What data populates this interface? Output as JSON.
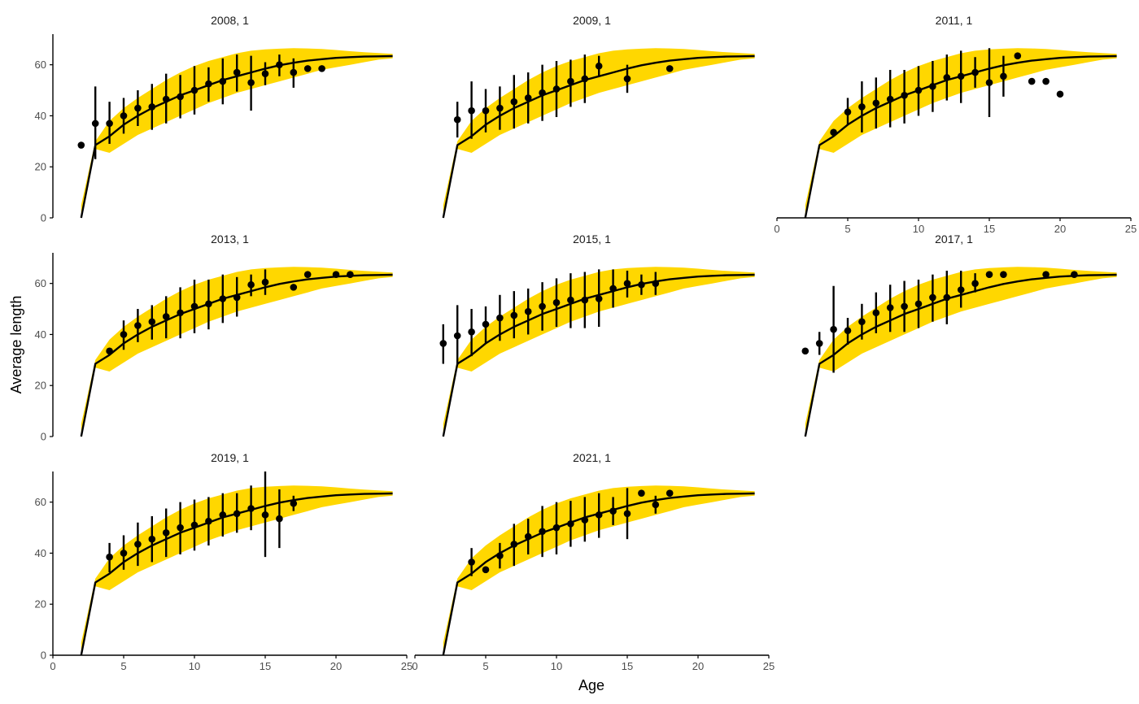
{
  "colors": {
    "band": "#FFD700",
    "line": "#000000",
    "point": "#000000",
    "axis": "#000000",
    "text": "#4d4d4d"
  },
  "chart_data": {
    "type": "scatter",
    "xlabel": "Age",
    "ylabel": "Average length",
    "xlim": [
      0,
      25
    ],
    "ylim": [
      0,
      72
    ],
    "x_ticks": [
      0,
      5,
      10,
      15,
      20,
      25
    ],
    "y_ticks": [
      0,
      20,
      40,
      60
    ],
    "grid": false,
    "fitted_curve": {
      "x": [
        2,
        3,
        4,
        5,
        6,
        7,
        8,
        9,
        10,
        11,
        12,
        13,
        14,
        15,
        16,
        17,
        18,
        19,
        20,
        21,
        22,
        23,
        24
      ],
      "y": [
        0,
        28.5,
        32,
        36.5,
        40,
        43,
        45.5,
        48,
        50,
        52,
        54,
        55.5,
        57,
        58.5,
        59.8,
        60.8,
        61.6,
        62.2,
        62.7,
        63,
        63.2,
        63.3,
        63.4
      ],
      "band_low": [
        0,
        27,
        25.5,
        29,
        32.5,
        35,
        37.5,
        40,
        42.5,
        45,
        47,
        49,
        50.5,
        52,
        53.5,
        55,
        56.5,
        58,
        59,
        60,
        61,
        62,
        62.5
      ],
      "band_high": [
        5,
        30,
        38,
        43,
        47,
        50.5,
        54,
        57,
        59.5,
        61.5,
        63,
        64.5,
        65.5,
        66,
        66.3,
        66.5,
        66.4,
        66.2,
        65.8,
        65.3,
        64.9,
        64.6,
        64.3
      ]
    },
    "panels": [
      {
        "title": "2008, 1",
        "obs": [
          {
            "x": 2,
            "y": 28.5
          },
          {
            "x": 3,
            "y": 37,
            "lo": 23,
            "hi": 51.5
          },
          {
            "x": 4,
            "y": 37,
            "lo": 29,
            "hi": 45.5
          },
          {
            "x": 5,
            "y": 40,
            "lo": 33,
            "hi": 47
          },
          {
            "x": 6,
            "y": 43,
            "lo": 36,
            "hi": 50
          },
          {
            "x": 7,
            "y": 43.5,
            "lo": 34.5,
            "hi": 52.5
          },
          {
            "x": 8,
            "y": 46.5,
            "lo": 37,
            "hi": 56.5
          },
          {
            "x": 9,
            "y": 47.5,
            "lo": 39,
            "hi": 56
          },
          {
            "x": 10,
            "y": 50,
            "lo": 40.5,
            "hi": 59.5
          },
          {
            "x": 11,
            "y": 52.5,
            "lo": 45.5,
            "hi": 59
          },
          {
            "x": 12,
            "y": 53.5,
            "lo": 44.5,
            "hi": 62.5
          },
          {
            "x": 13,
            "y": 57,
            "lo": 49.5,
            "hi": 64
          },
          {
            "x": 14,
            "y": 53,
            "lo": 42,
            "hi": 63.5
          },
          {
            "x": 15,
            "y": 56.5,
            "lo": 52,
            "hi": 61
          },
          {
            "x": 16,
            "y": 60,
            "lo": 55.5,
            "hi": 64
          },
          {
            "x": 17,
            "y": 57,
            "lo": 51,
            "hi": 62.5
          },
          {
            "x": 18,
            "y": 58.5
          },
          {
            "x": 19,
            "y": 58.5
          }
        ]
      },
      {
        "title": "2009, 1",
        "obs": [
          {
            "x": 3,
            "y": 38.5,
            "lo": 31.5,
            "hi": 45.5
          },
          {
            "x": 4,
            "y": 42,
            "lo": 31,
            "hi": 53.5
          },
          {
            "x": 5,
            "y": 42,
            "lo": 33.5,
            "hi": 50.5
          },
          {
            "x": 6,
            "y": 43,
            "lo": 34.5,
            "hi": 51.5
          },
          {
            "x": 7,
            "y": 45.5,
            "lo": 35,
            "hi": 56
          },
          {
            "x": 8,
            "y": 47,
            "lo": 37,
            "hi": 57
          },
          {
            "x": 9,
            "y": 49,
            "lo": 38,
            "hi": 60
          },
          {
            "x": 10,
            "y": 50.5,
            "lo": 39.5,
            "hi": 61.5
          },
          {
            "x": 11,
            "y": 53.5,
            "lo": 43.5,
            "hi": 62
          },
          {
            "x": 12,
            "y": 54.5,
            "lo": 45,
            "hi": 64
          },
          {
            "x": 13,
            "y": 59.5,
            "lo": 55.5,
            "hi": 63.5
          },
          {
            "x": 15,
            "y": 54.5,
            "lo": 49,
            "hi": 60
          },
          {
            "x": 18,
            "y": 58.5
          }
        ]
      },
      {
        "title": "2011, 1",
        "obs": [
          {
            "x": 4,
            "y": 33.5
          },
          {
            "x": 5,
            "y": 41.5,
            "lo": 36.5,
            "hi": 47
          },
          {
            "x": 6,
            "y": 43.5,
            "lo": 33.5,
            "hi": 53.5
          },
          {
            "x": 7,
            "y": 45,
            "lo": 35,
            "hi": 55
          },
          {
            "x": 8,
            "y": 46.5,
            "lo": 35.5,
            "hi": 58
          },
          {
            "x": 9,
            "y": 48,
            "lo": 37,
            "hi": 58
          },
          {
            "x": 10,
            "y": 50,
            "lo": 40,
            "hi": 59.5
          },
          {
            "x": 11,
            "y": 51.5,
            "lo": 41.5,
            "hi": 61.5
          },
          {
            "x": 12,
            "y": 55,
            "lo": 46,
            "hi": 64
          },
          {
            "x": 13,
            "y": 55.5,
            "lo": 45,
            "hi": 65.5
          },
          {
            "x": 14,
            "y": 57,
            "lo": 51,
            "hi": 63
          },
          {
            "x": 15,
            "y": 53,
            "lo": 39.5,
            "hi": 66.5
          },
          {
            "x": 16,
            "y": 55.5,
            "lo": 47.5,
            "hi": 63.5
          },
          {
            "x": 17,
            "y": 63.5
          },
          {
            "x": 18,
            "y": 53.5
          },
          {
            "x": 19,
            "y": 53.5
          },
          {
            "x": 20,
            "y": 48.5
          }
        ]
      },
      {
        "title": "2013, 1",
        "obs": [
          {
            "x": 4,
            "y": 33.5
          },
          {
            "x": 5,
            "y": 40,
            "lo": 34,
            "hi": 45.5
          },
          {
            "x": 6,
            "y": 43.5,
            "lo": 37,
            "hi": 50
          },
          {
            "x": 7,
            "y": 45,
            "lo": 38,
            "hi": 51.5
          },
          {
            "x": 8,
            "y": 47,
            "lo": 38.5,
            "hi": 55
          },
          {
            "x": 9,
            "y": 48.5,
            "lo": 38.5,
            "hi": 58.5
          },
          {
            "x": 10,
            "y": 51,
            "lo": 40.5,
            "hi": 61.5
          },
          {
            "x": 11,
            "y": 52,
            "lo": 42,
            "hi": 61.5
          },
          {
            "x": 12,
            "y": 54,
            "lo": 44.5,
            "hi": 63.5
          },
          {
            "x": 13,
            "y": 54.5,
            "lo": 47,
            "hi": 62.5
          },
          {
            "x": 14,
            "y": 59.5,
            "lo": 55,
            "hi": 63.5
          },
          {
            "x": 15,
            "y": 60.5,
            "lo": 55.5,
            "hi": 65.5
          },
          {
            "x": 17,
            "y": 58.5
          },
          {
            "x": 18,
            "y": 63.5
          },
          {
            "x": 20,
            "y": 63.5
          },
          {
            "x": 21,
            "y": 63.5
          }
        ]
      },
      {
        "title": "2015, 1",
        "obs": [
          {
            "x": 2,
            "y": 36.5,
            "lo": 28.5,
            "hi": 44
          },
          {
            "x": 3,
            "y": 39.5,
            "lo": 28,
            "hi": 51.5
          },
          {
            "x": 4,
            "y": 41,
            "lo": 31.5,
            "hi": 50
          },
          {
            "x": 5,
            "y": 44,
            "lo": 36.5,
            "hi": 51
          },
          {
            "x": 6,
            "y": 46.5,
            "lo": 37.5,
            "hi": 55.5
          },
          {
            "x": 7,
            "y": 47.5,
            "lo": 38.5,
            "hi": 57
          },
          {
            "x": 8,
            "y": 49,
            "lo": 40,
            "hi": 58
          },
          {
            "x": 9,
            "y": 51,
            "lo": 41.5,
            "hi": 60.5
          },
          {
            "x": 10,
            "y": 52.5,
            "lo": 43,
            "hi": 62
          },
          {
            "x": 11,
            "y": 53.5,
            "lo": 42.5,
            "hi": 64
          },
          {
            "x": 12,
            "y": 53.5,
            "lo": 42.5,
            "hi": 64.5
          },
          {
            "x": 13,
            "y": 54,
            "lo": 43,
            "hi": 65.5
          },
          {
            "x": 14,
            "y": 58,
            "lo": 50.5,
            "hi": 65.5
          },
          {
            "x": 15,
            "y": 60,
            "lo": 54.5,
            "hi": 65
          },
          {
            "x": 16,
            "y": 59.5,
            "lo": 55.5,
            "hi": 63.5
          },
          {
            "x": 17,
            "y": 60,
            "lo": 55.5,
            "hi": 64.5
          }
        ]
      },
      {
        "title": "2017, 1",
        "obs": [
          {
            "x": 2,
            "y": 33.5
          },
          {
            "x": 3,
            "y": 36.5,
            "lo": 32,
            "hi": 41
          },
          {
            "x": 4,
            "y": 42,
            "lo": 25,
            "hi": 59
          },
          {
            "x": 5,
            "y": 41.5,
            "lo": 36,
            "hi": 46.5
          },
          {
            "x": 6,
            "y": 45,
            "lo": 38,
            "hi": 52
          },
          {
            "x": 7,
            "y": 48.5,
            "lo": 40.5,
            "hi": 56.5
          },
          {
            "x": 8,
            "y": 50.5,
            "lo": 41,
            "hi": 59.5
          },
          {
            "x": 9,
            "y": 51,
            "lo": 41,
            "hi": 61
          },
          {
            "x": 10,
            "y": 52,
            "lo": 42.5,
            "hi": 61.5
          },
          {
            "x": 11,
            "y": 54.5,
            "lo": 45,
            "hi": 63.5
          },
          {
            "x": 12,
            "y": 54.5,
            "lo": 44,
            "hi": 65
          },
          {
            "x": 13,
            "y": 57.5,
            "lo": 50.5,
            "hi": 65
          },
          {
            "x": 14,
            "y": 60,
            "lo": 56.5,
            "hi": 64
          },
          {
            "x": 15,
            "y": 63.5
          },
          {
            "x": 16,
            "y": 63.5
          },
          {
            "x": 19,
            "y": 63.5
          },
          {
            "x": 21,
            "y": 63.5
          }
        ]
      },
      {
        "title": "2019, 1",
        "obs": [
          {
            "x": 4,
            "y": 38.5,
            "lo": 32.5,
            "hi": 44
          },
          {
            "x": 5,
            "y": 40,
            "lo": 33.5,
            "hi": 47
          },
          {
            "x": 6,
            "y": 43.5,
            "lo": 35,
            "hi": 52
          },
          {
            "x": 7,
            "y": 45.5,
            "lo": 36.5,
            "hi": 54.5
          },
          {
            "x": 8,
            "y": 48,
            "lo": 38.5,
            "hi": 57.5
          },
          {
            "x": 9,
            "y": 50,
            "lo": 39.5,
            "hi": 60
          },
          {
            "x": 10,
            "y": 51,
            "lo": 41,
            "hi": 61
          },
          {
            "x": 11,
            "y": 52.5,
            "lo": 43,
            "hi": 62
          },
          {
            "x": 12,
            "y": 55,
            "lo": 46.5,
            "hi": 63.5
          },
          {
            "x": 13,
            "y": 55.5,
            "lo": 48,
            "hi": 63.5
          },
          {
            "x": 14,
            "y": 57.5,
            "lo": 49,
            "hi": 66.5
          },
          {
            "x": 15,
            "y": 55,
            "lo": 38.5,
            "hi": 72
          },
          {
            "x": 16,
            "y": 53.5,
            "lo": 42,
            "hi": 65
          },
          {
            "x": 17,
            "y": 59.5,
            "lo": 56.5,
            "hi": 62.5
          }
        ]
      },
      {
        "title": "2021, 1",
        "obs": [
          {
            "x": 4,
            "y": 36.5,
            "lo": 31,
            "hi": 42
          },
          {
            "x": 5,
            "y": 33.5
          },
          {
            "x": 6,
            "y": 39,
            "lo": 34,
            "hi": 44
          },
          {
            "x": 7,
            "y": 43.5,
            "lo": 35,
            "hi": 51.5
          },
          {
            "x": 8,
            "y": 46.5,
            "lo": 39.5,
            "hi": 53.5
          },
          {
            "x": 9,
            "y": 48.5,
            "lo": 38.5,
            "hi": 58.5
          },
          {
            "x": 10,
            "y": 50,
            "lo": 39.5,
            "hi": 60
          },
          {
            "x": 11,
            "y": 51.5,
            "lo": 42.5,
            "hi": 60.5
          },
          {
            "x": 12,
            "y": 53,
            "lo": 44.5,
            "hi": 62
          },
          {
            "x": 13,
            "y": 55,
            "lo": 46,
            "hi": 63.5
          },
          {
            "x": 14,
            "y": 56.5,
            "lo": 51,
            "hi": 62
          },
          {
            "x": 15,
            "y": 55.5,
            "lo": 45.5,
            "hi": 65.5
          },
          {
            "x": 16,
            "y": 63.5
          },
          {
            "x": 17,
            "y": 59,
            "lo": 55.5,
            "hi": 62.5
          },
          {
            "x": 18,
            "y": 63.5
          }
        ]
      }
    ]
  }
}
